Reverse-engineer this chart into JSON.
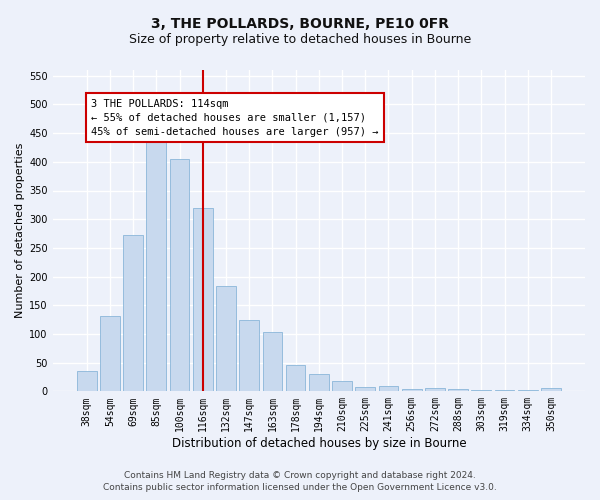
{
  "title": "3, THE POLLARDS, BOURNE, PE10 0FR",
  "subtitle": "Size of property relative to detached houses in Bourne",
  "xlabel": "Distribution of detached houses by size in Bourne",
  "ylabel": "Number of detached properties",
  "categories": [
    "38sqm",
    "54sqm",
    "69sqm",
    "85sqm",
    "100sqm",
    "116sqm",
    "132sqm",
    "147sqm",
    "163sqm",
    "178sqm",
    "194sqm",
    "210sqm",
    "225sqm",
    "241sqm",
    "256sqm",
    "272sqm",
    "288sqm",
    "303sqm",
    "319sqm",
    "334sqm",
    "350sqm"
  ],
  "values": [
    35,
    132,
    272,
    435,
    405,
    320,
    184,
    125,
    104,
    46,
    30,
    18,
    8,
    10,
    4,
    5,
    4,
    3,
    2,
    3,
    6
  ],
  "bar_color": "#c8d9ee",
  "bar_edge_color": "#7aadd4",
  "vline_index": 5,
  "vline_color": "#cc0000",
  "annotation_line1": "3 THE POLLARDS: 114sqm",
  "annotation_line2": "← 55% of detached houses are smaller (1,157)",
  "annotation_line3": "45% of semi-detached houses are larger (957) →",
  "annotation_box_facecolor": "#ffffff",
  "annotation_box_edgecolor": "#cc0000",
  "ylim_max": 560,
  "yticks": [
    0,
    50,
    100,
    150,
    200,
    250,
    300,
    350,
    400,
    450,
    500,
    550
  ],
  "bg_color": "#edf1fa",
  "grid_color": "#ffffff",
  "title_fontsize": 10,
  "subtitle_fontsize": 9,
  "ylabel_fontsize": 8,
  "xlabel_fontsize": 8.5,
  "tick_fontsize": 7,
  "ann_fontsize": 7.5,
  "footer_line1": "Contains HM Land Registry data © Crown copyright and database right 2024.",
  "footer_line2": "Contains public sector information licensed under the Open Government Licence v3.0.",
  "footer_fontsize": 6.5
}
